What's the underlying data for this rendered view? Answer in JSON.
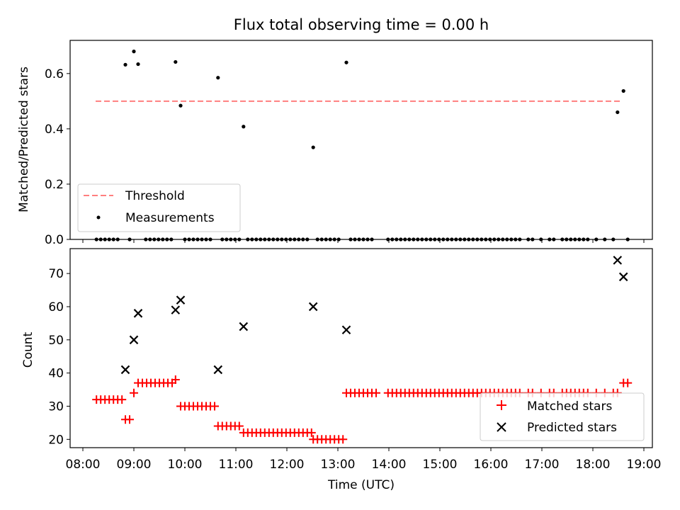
{
  "figure": {
    "title": "Flux total observing time = 0.00 h",
    "xlabel": "Time (UTC)"
  },
  "chart_data": [
    {
      "type": "scatter",
      "panel": "top",
      "ylabel": "Matched/Predicted stars",
      "ylim": [
        0.0,
        0.72
      ],
      "yticks": [
        "0.0",
        "0.2",
        "0.4",
        "0.6"
      ],
      "legend_position": "lower-left",
      "threshold": {
        "name": "Threshold",
        "value": 0.5,
        "x_range": [
          "08:15",
          "18:35"
        ],
        "color": "#ff7f7f"
      },
      "series": [
        {
          "name": "Measurements",
          "color": "#000000",
          "points": [
            [
              "08:50",
              0.632
            ],
            [
              "09:00",
              0.68
            ],
            [
              "09:05",
              0.634
            ],
            [
              "09:49",
              0.642
            ],
            [
              "09:55",
              0.484
            ],
            [
              "10:39",
              0.585
            ],
            [
              "11:09",
              0.408
            ],
            [
              "12:31",
              0.333
            ],
            [
              "13:10",
              0.64
            ],
            [
              "18:29",
              0.46
            ],
            [
              "18:36",
              0.537
            ],
            [
              "08:16",
              0.0
            ],
            [
              "08:21",
              0.0
            ],
            [
              "08:26",
              0.0
            ],
            [
              "08:31",
              0.0
            ],
            [
              "08:36",
              0.0
            ],
            [
              "08:41",
              0.0
            ],
            [
              "08:55",
              0.0
            ],
            [
              "09:14",
              0.0
            ],
            [
              "09:19",
              0.0
            ],
            [
              "09:24",
              0.0
            ],
            [
              "09:29",
              0.0
            ],
            [
              "09:34",
              0.0
            ],
            [
              "09:39",
              0.0
            ],
            [
              "09:44",
              0.0
            ],
            [
              "10:00",
              0.0
            ],
            [
              "10:05",
              0.0
            ],
            [
              "10:10",
              0.0
            ],
            [
              "10:15",
              0.0
            ],
            [
              "10:20",
              0.0
            ],
            [
              "10:25",
              0.0
            ],
            [
              "10:30",
              0.0
            ],
            [
              "10:44",
              0.0
            ],
            [
              "10:49",
              0.0
            ],
            [
              "10:54",
              0.0
            ],
            [
              "10:59",
              0.0
            ],
            [
              "11:04",
              0.0
            ],
            [
              "11:14",
              0.0
            ],
            [
              "11:19",
              0.0
            ],
            [
              "11:24",
              0.0
            ],
            [
              "11:29",
              0.0
            ],
            [
              "11:34",
              0.0
            ],
            [
              "11:39",
              0.0
            ],
            [
              "11:44",
              0.0
            ],
            [
              "11:49",
              0.0
            ],
            [
              "11:54",
              0.0
            ],
            [
              "11:59",
              0.0
            ],
            [
              "12:04",
              0.0
            ],
            [
              "12:09",
              0.0
            ],
            [
              "12:14",
              0.0
            ],
            [
              "12:19",
              0.0
            ],
            [
              "12:24",
              0.0
            ],
            [
              "12:36",
              0.0
            ],
            [
              "12:41",
              0.0
            ],
            [
              "12:46",
              0.0
            ],
            [
              "12:51",
              0.0
            ],
            [
              "12:56",
              0.0
            ],
            [
              "13:01",
              0.0
            ],
            [
              "13:15",
              0.0
            ],
            [
              "13:20",
              0.0
            ],
            [
              "13:25",
              0.0
            ],
            [
              "13:30",
              0.0
            ],
            [
              "13:35",
              0.0
            ],
            [
              "13:40",
              0.0
            ],
            [
              "13:59",
              0.0
            ],
            [
              "14:04",
              0.0
            ],
            [
              "14:09",
              0.0
            ],
            [
              "14:14",
              0.0
            ],
            [
              "14:19",
              0.0
            ],
            [
              "14:24",
              0.0
            ],
            [
              "14:29",
              0.0
            ],
            [
              "14:34",
              0.0
            ],
            [
              "14:39",
              0.0
            ],
            [
              "14:44",
              0.0
            ],
            [
              "14:49",
              0.0
            ],
            [
              "14:54",
              0.0
            ],
            [
              "14:59",
              0.0
            ],
            [
              "15:04",
              0.0
            ],
            [
              "15:09",
              0.0
            ],
            [
              "15:14",
              0.0
            ],
            [
              "15:19",
              0.0
            ],
            [
              "15:24",
              0.0
            ],
            [
              "15:29",
              0.0
            ],
            [
              "15:34",
              0.0
            ],
            [
              "15:39",
              0.0
            ],
            [
              "15:44",
              0.0
            ],
            [
              "15:49",
              0.0
            ],
            [
              "15:54",
              0.0
            ],
            [
              "15:59",
              0.0
            ],
            [
              "16:04",
              0.0
            ],
            [
              "16:09",
              0.0
            ],
            [
              "16:14",
              0.0
            ],
            [
              "16:19",
              0.0
            ],
            [
              "16:24",
              0.0
            ],
            [
              "16:29",
              0.0
            ],
            [
              "16:34",
              0.0
            ],
            [
              "16:44",
              0.0
            ],
            [
              "16:49",
              0.0
            ],
            [
              "16:59",
              0.0
            ],
            [
              "17:09",
              0.0
            ],
            [
              "17:14",
              0.0
            ],
            [
              "17:24",
              0.0
            ],
            [
              "17:29",
              0.0
            ],
            [
              "17:34",
              0.0
            ],
            [
              "17:39",
              0.0
            ],
            [
              "17:44",
              0.0
            ],
            [
              "17:49",
              0.0
            ],
            [
              "17:54",
              0.0
            ],
            [
              "18:04",
              0.0
            ],
            [
              "18:14",
              0.0
            ],
            [
              "18:24",
              0.0
            ],
            [
              "18:41",
              0.0
            ]
          ]
        }
      ]
    },
    {
      "type": "scatter",
      "panel": "bottom",
      "ylabel": "Count",
      "ylim": [
        17.5,
        77.5
      ],
      "yticks": [
        "20",
        "30",
        "40",
        "50",
        "60",
        "70"
      ],
      "xlim": [
        "07:45",
        "19:10"
      ],
      "xticks": [
        "08:00",
        "09:00",
        "10:00",
        "11:00",
        "12:00",
        "13:00",
        "14:00",
        "15:00",
        "16:00",
        "17:00",
        "18:00",
        "19:00"
      ],
      "legend_position": "lower-right",
      "series": [
        {
          "name": "Matched stars",
          "marker": "+",
          "color": "#ff0000",
          "points": [
            [
              "08:16",
              32
            ],
            [
              "08:21",
              32
            ],
            [
              "08:26",
              32
            ],
            [
              "08:31",
              32
            ],
            [
              "08:36",
              32
            ],
            [
              "08:41",
              32
            ],
            [
              "08:46",
              32
            ],
            [
              "08:50",
              26
            ],
            [
              "08:55",
              26
            ],
            [
              "09:00",
              34
            ],
            [
              "09:05",
              37
            ],
            [
              "09:10",
              37
            ],
            [
              "09:15",
              37
            ],
            [
              "09:20",
              37
            ],
            [
              "09:25",
              37
            ],
            [
              "09:30",
              37
            ],
            [
              "09:35",
              37
            ],
            [
              "09:40",
              37
            ],
            [
              "09:45",
              37
            ],
            [
              "09:49",
              38
            ],
            [
              "09:55",
              30
            ],
            [
              "10:00",
              30
            ],
            [
              "10:05",
              30
            ],
            [
              "10:10",
              30
            ],
            [
              "10:15",
              30
            ],
            [
              "10:20",
              30
            ],
            [
              "10:25",
              30
            ],
            [
              "10:30",
              30
            ],
            [
              "10:35",
              30
            ],
            [
              "10:39",
              24
            ],
            [
              "10:44",
              24
            ],
            [
              "10:49",
              24
            ],
            [
              "10:54",
              24
            ],
            [
              "10:59",
              24
            ],
            [
              "11:04",
              24
            ],
            [
              "11:09",
              22
            ],
            [
              "11:14",
              22
            ],
            [
              "11:19",
              22
            ],
            [
              "11:24",
              22
            ],
            [
              "11:29",
              22
            ],
            [
              "11:34",
              22
            ],
            [
              "11:39",
              22
            ],
            [
              "11:44",
              22
            ],
            [
              "11:49",
              22
            ],
            [
              "11:54",
              22
            ],
            [
              "11:59",
              22
            ],
            [
              "12:04",
              22
            ],
            [
              "12:09",
              22
            ],
            [
              "12:14",
              22
            ],
            [
              "12:19",
              22
            ],
            [
              "12:24",
              22
            ],
            [
              "12:29",
              22
            ],
            [
              "12:31",
              20
            ],
            [
              "12:36",
              20
            ],
            [
              "12:41",
              20
            ],
            [
              "12:46",
              20
            ],
            [
              "12:51",
              20
            ],
            [
              "12:56",
              20
            ],
            [
              "13:01",
              20
            ],
            [
              "13:06",
              20
            ],
            [
              "13:10",
              34
            ],
            [
              "13:15",
              34
            ],
            [
              "13:20",
              34
            ],
            [
              "13:25",
              34
            ],
            [
              "13:30",
              34
            ],
            [
              "13:35",
              34
            ],
            [
              "13:40",
              34
            ],
            [
              "13:45",
              34
            ],
            [
              "13:59",
              34
            ],
            [
              "14:04",
              34
            ],
            [
              "14:09",
              34
            ],
            [
              "14:14",
              34
            ],
            [
              "14:19",
              34
            ],
            [
              "14:24",
              34
            ],
            [
              "14:29",
              34
            ],
            [
              "14:34",
              34
            ],
            [
              "14:39",
              34
            ],
            [
              "14:44",
              34
            ],
            [
              "14:49",
              34
            ],
            [
              "14:54",
              34
            ],
            [
              "14:59",
              34
            ],
            [
              "15:04",
              34
            ],
            [
              "15:09",
              34
            ],
            [
              "15:14",
              34
            ],
            [
              "15:19",
              34
            ],
            [
              "15:24",
              34
            ],
            [
              "15:29",
              34
            ],
            [
              "15:34",
              34
            ],
            [
              "15:39",
              34
            ],
            [
              "15:44",
              34
            ],
            [
              "15:49",
              34
            ],
            [
              "15:54",
              34
            ],
            [
              "15:59",
              34
            ],
            [
              "16:04",
              34
            ],
            [
              "16:09",
              34
            ],
            [
              "16:14",
              34
            ],
            [
              "16:19",
              34
            ],
            [
              "16:24",
              34
            ],
            [
              "16:29",
              34
            ],
            [
              "16:34",
              34
            ],
            [
              "16:44",
              34
            ],
            [
              "16:49",
              34
            ],
            [
              "16:59",
              34
            ],
            [
              "17:09",
              34
            ],
            [
              "17:14",
              34
            ],
            [
              "17:24",
              34
            ],
            [
              "17:29",
              34
            ],
            [
              "17:34",
              34
            ],
            [
              "17:39",
              34
            ],
            [
              "17:44",
              34
            ],
            [
              "17:49",
              34
            ],
            [
              "17:54",
              34
            ],
            [
              "18:04",
              34
            ],
            [
              "18:14",
              34
            ],
            [
              "18:24",
              34
            ],
            [
              "18:29",
              34
            ],
            [
              "18:36",
              37
            ],
            [
              "18:41",
              37
            ]
          ]
        },
        {
          "name": "Predicted stars",
          "marker": "x",
          "color": "#000000",
          "points": [
            [
              "08:50",
              41
            ],
            [
              "09:00",
              50
            ],
            [
              "09:05",
              58
            ],
            [
              "09:49",
              59
            ],
            [
              "09:55",
              62
            ],
            [
              "10:39",
              41
            ],
            [
              "11:09",
              54
            ],
            [
              "12:31",
              60
            ],
            [
              "13:10",
              53
            ],
            [
              "18:29",
              74
            ],
            [
              "18:36",
              69
            ]
          ]
        }
      ]
    }
  ]
}
